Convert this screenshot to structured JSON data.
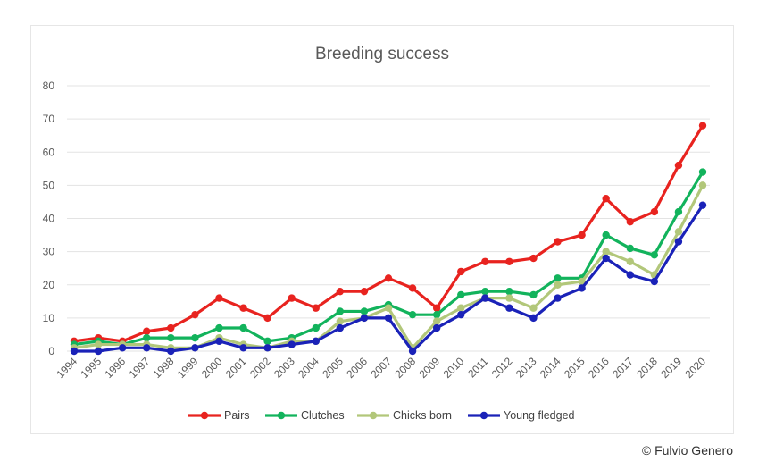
{
  "credit": "© Fulvio Genero",
  "chart_data": {
    "type": "line",
    "title": "Breeding success",
    "xlabel": "",
    "ylabel": "",
    "ylim": [
      0,
      80
    ],
    "yticks": [
      0,
      10,
      20,
      30,
      40,
      50,
      60,
      70,
      80
    ],
    "grid": true,
    "legend_position": "bottom",
    "categories": [
      "1994",
      "1995",
      "1996",
      "1997",
      "1998",
      "1999",
      "2000",
      "2001",
      "2002",
      "2003",
      "2004",
      "2005",
      "2006",
      "2007",
      "2008",
      "2009",
      "2010",
      "2011",
      "2012",
      "2013",
      "2014",
      "2015",
      "2016",
      "2017",
      "2018",
      "2019",
      "2020"
    ],
    "series": [
      {
        "name": "Pairs",
        "color": "#e8231f",
        "values": [
          3,
          4,
          3,
          6,
          7,
          11,
          16,
          13,
          10,
          16,
          13,
          18,
          18,
          22,
          19,
          13,
          24,
          27,
          27,
          28,
          33,
          35,
          46,
          39,
          42,
          56,
          68
        ]
      },
      {
        "name": "Clutches",
        "color": "#12b35c",
        "values": [
          2,
          3,
          2,
          4,
          4,
          4,
          7,
          7,
          3,
          4,
          7,
          12,
          12,
          14,
          11,
          11,
          17,
          18,
          18,
          17,
          22,
          22,
          35,
          31,
          29,
          42,
          54
        ]
      },
      {
        "name": "Chicks born",
        "color": "#b2c77a",
        "values": [
          1,
          2,
          2,
          2,
          1,
          1,
          4,
          2,
          1,
          3,
          3,
          9,
          10,
          13,
          1,
          9,
          13,
          16,
          16,
          13,
          20,
          21,
          30,
          27,
          23,
          36,
          50
        ]
      },
      {
        "name": "Young fledged",
        "color": "#1a22b8",
        "values": [
          0,
          0,
          1,
          1,
          0,
          1,
          3,
          1,
          1,
          2,
          3,
          7,
          10,
          10,
          0,
          7,
          11,
          16,
          13,
          10,
          16,
          19,
          28,
          23,
          21,
          33,
          44
        ]
      }
    ]
  }
}
